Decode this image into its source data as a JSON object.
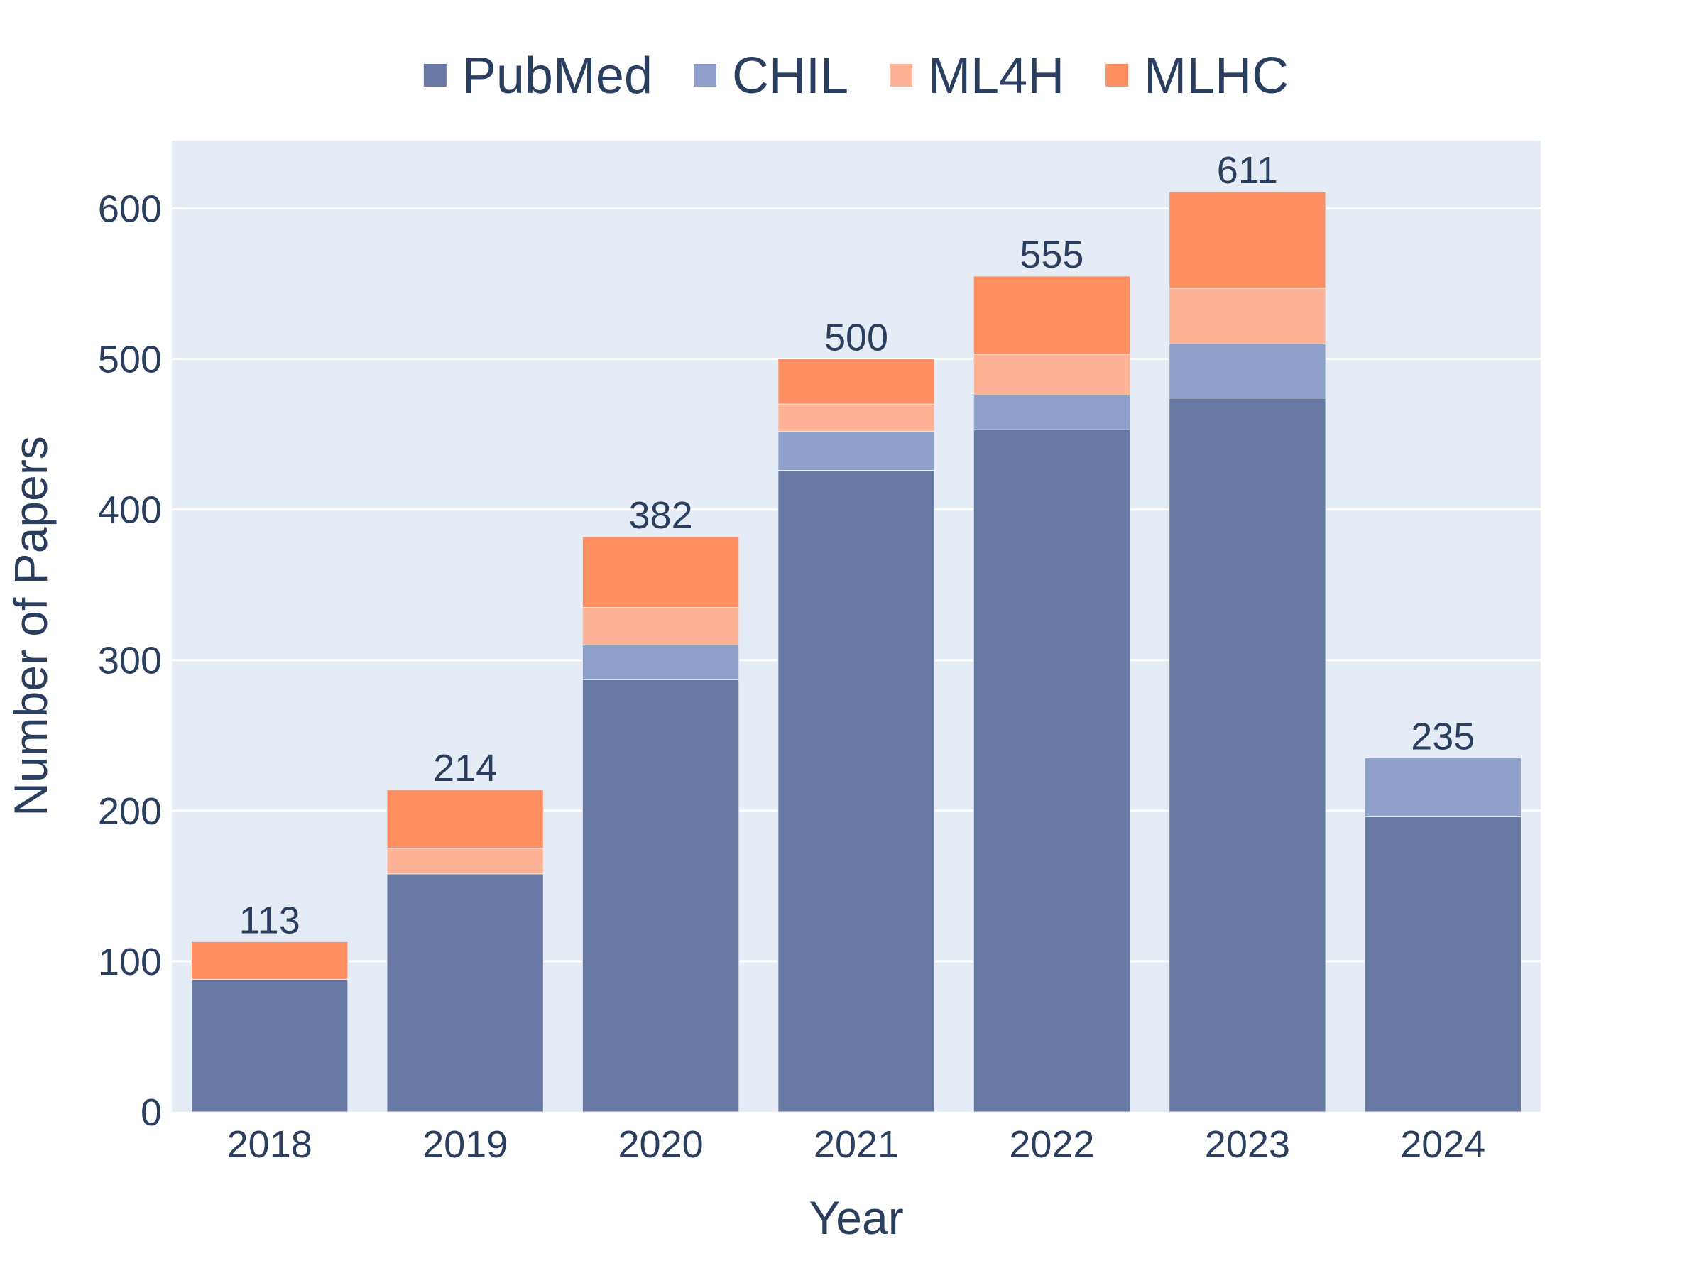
{
  "chart_data": {
    "type": "bar",
    "stacked": true,
    "categories": [
      "2018",
      "2019",
      "2020",
      "2021",
      "2022",
      "2023",
      "2024"
    ],
    "series": [
      {
        "name": "PubMed",
        "color": "#6779a3",
        "values": [
          88,
          158,
          287,
          426,
          453,
          474,
          196
        ]
      },
      {
        "name": "CHIL",
        "color": "#8fa1cb",
        "values": [
          0,
          0,
          23,
          26,
          23,
          36,
          39
        ]
      },
      {
        "name": "ML4H",
        "color": "#feb396",
        "values": [
          0,
          17,
          25,
          18,
          27,
          37,
          0
        ]
      },
      {
        "name": "MLHC",
        "color": "#fe8f63",
        "values": [
          25,
          39,
          47,
          30,
          52,
          64,
          0
        ]
      }
    ],
    "totals": [
      "113",
      "214",
      "382",
      "500",
      "555",
      "611",
      "235"
    ],
    "xlabel": "Year",
    "ylabel": "Number of Papers",
    "ylim": [
      0,
      645
    ],
    "yticks": [
      0,
      100,
      200,
      300,
      400,
      500,
      600
    ],
    "ytick_labels": [
      "0",
      "100",
      "200",
      "300",
      "400",
      "500",
      "600"
    ],
    "legend_position": "top-center",
    "grid": true,
    "plot_background": "#e5ecf6"
  }
}
